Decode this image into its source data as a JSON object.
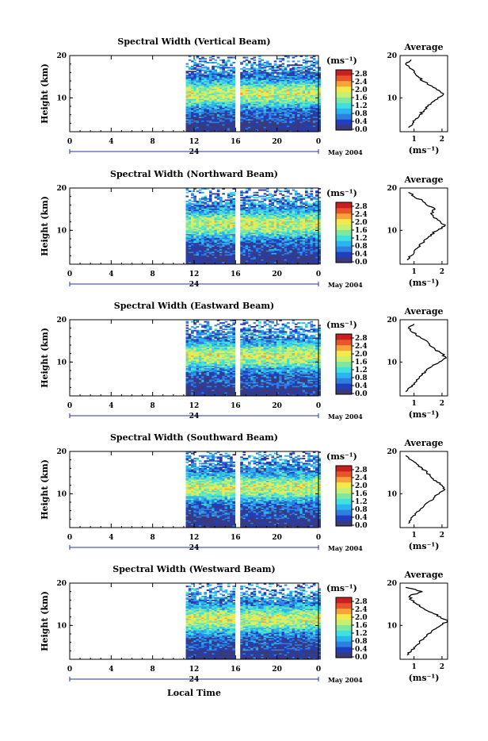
{
  "figure": {
    "xlabel": "Local Time",
    "date_label": "May 2004",
    "x_ticks": [
      "0",
      "4",
      "8",
      "12",
      "16",
      "20",
      "0"
    ],
    "day_label": "24",
    "y_ticks": [
      "20",
      "10"
    ],
    "ylabel": "Height (km)",
    "colorbar_unit": "(ms⁻¹)",
    "colorbar_ticks": [
      "2.8",
      "2.4",
      "2.0",
      "1.6",
      "1.2",
      "0.8",
      "0.4",
      "0.0"
    ],
    "avg_title": "Average",
    "avg_unit": "(ms⁻¹)",
    "avg_x_ticks": [
      "1",
      "2"
    ],
    "avg_y_ticks": [
      "20",
      "10"
    ],
    "colormap": [
      "#3a3a7a",
      "#1f3fbf",
      "#2f7fe0",
      "#2bb5f0",
      "#3fe0e0",
      "#7fe8a0",
      "#c8f070",
      "#f5e84a",
      "#f5a33a",
      "#e8552a",
      "#c9201f"
    ],
    "gap_color": "#ffffff",
    "axis_color": "#000000",
    "date_axis_color": "#2233aa"
  },
  "chart_data": [
    {
      "type": "heatmap",
      "title": "Spectral Width (Vertical Beam)",
      "xlabel": "Local Time",
      "ylabel": "Height (km)",
      "x_range_hours": [
        0,
        24
      ],
      "y_range_km": [
        2,
        20
      ],
      "data_coverage_hours": [
        11.2,
        24
      ],
      "gap_hours": [
        16.0,
        16.3
      ],
      "color_range": [
        0.0,
        2.8
      ],
      "colorbar_label": "(ms⁻¹)",
      "peak_height_km": 11,
      "average_profile": {
        "title": "Average",
        "xlabel": "(ms⁻¹)",
        "xlim": [
          0.5,
          2.2
        ],
        "heights_km": [
          3,
          4,
          5,
          6,
          7,
          8,
          9,
          10,
          11,
          12,
          13,
          14,
          15,
          16,
          17,
          18,
          19
        ],
        "values": [
          0.8,
          0.95,
          1.05,
          1.2,
          1.35,
          1.5,
          1.65,
          1.85,
          2.05,
          1.8,
          1.55,
          1.3,
          1.15,
          1.0,
          0.85,
          0.7,
          0.9
        ]
      }
    },
    {
      "type": "heatmap",
      "title": "Spectral Width (Northward Beam)",
      "xlabel": "Local Time",
      "ylabel": "Height (km)",
      "x_range_hours": [
        0,
        24
      ],
      "y_range_km": [
        2,
        20
      ],
      "data_coverage_hours": [
        11.2,
        24
      ],
      "gap_hours": [
        16.0,
        16.3
      ],
      "color_range": [
        0.0,
        2.8
      ],
      "colorbar_label": "(ms⁻¹)",
      "peak_height_km": 11.5,
      "average_profile": {
        "title": "Average",
        "xlabel": "(ms⁻¹)",
        "xlim": [
          0.5,
          2.2
        ],
        "heights_km": [
          3,
          4,
          5,
          6,
          7,
          8,
          9,
          10,
          11,
          12,
          13,
          14,
          15,
          16,
          17,
          18,
          19
        ],
        "values": [
          0.75,
          0.9,
          1.0,
          1.15,
          1.3,
          1.45,
          1.6,
          1.85,
          2.1,
          1.95,
          1.7,
          1.6,
          1.75,
          1.45,
          1.3,
          1.0,
          0.8
        ]
      }
    },
    {
      "type": "heatmap",
      "title": "Spectral Width (Eastward Beam)",
      "xlabel": "Local Time",
      "ylabel": "Height (km)",
      "x_range_hours": [
        0,
        24
      ],
      "y_range_km": [
        2,
        20
      ],
      "data_coverage_hours": [
        11.2,
        24
      ],
      "gap_hours": [
        16.0,
        16.3
      ],
      "color_range": [
        0.0,
        2.8
      ],
      "colorbar_label": "(ms⁻¹)",
      "peak_height_km": 11.5,
      "average_profile": {
        "title": "Average",
        "xlabel": "(ms⁻¹)",
        "xlim": [
          0.5,
          2.2
        ],
        "heights_km": [
          3,
          4,
          5,
          6,
          7,
          8,
          9,
          10,
          11,
          12,
          13,
          14,
          15,
          16,
          17,
          18,
          19
        ],
        "values": [
          0.7,
          0.85,
          1.0,
          1.15,
          1.3,
          1.45,
          1.65,
          1.9,
          2.15,
          2.0,
          1.75,
          1.55,
          1.45,
          1.2,
          0.95,
          0.8,
          1.0
        ]
      }
    },
    {
      "type": "heatmap",
      "title": "Spectral Width (Southward Beam)",
      "xlabel": "Local Time",
      "ylabel": "Height (km)",
      "x_range_hours": [
        0,
        24
      ],
      "y_range_km": [
        2,
        20
      ],
      "data_coverage_hours": [
        11.2,
        24
      ],
      "gap_hours": [
        16.0,
        16.3
      ],
      "color_range": [
        0.0,
        2.8
      ],
      "colorbar_label": "(ms⁻¹)",
      "peak_height_km": 11.5,
      "average_profile": {
        "title": "Average",
        "xlabel": "(ms⁻¹)",
        "xlim": [
          0.5,
          2.2
        ],
        "heights_km": [
          3,
          4,
          5,
          6,
          7,
          8,
          9,
          10,
          11,
          12,
          13,
          14,
          15,
          16,
          17,
          18,
          19
        ],
        "values": [
          0.8,
          0.9,
          1.05,
          1.2,
          1.35,
          1.5,
          1.7,
          1.9,
          2.1,
          2.0,
          1.8,
          1.6,
          1.45,
          1.3,
          1.1,
          0.9,
          0.7
        ]
      }
    },
    {
      "type": "heatmap",
      "title": "Spectral Width (Westward Beam)",
      "xlabel": "Local Time",
      "ylabel": "Height (km)",
      "x_range_hours": [
        0,
        24
      ],
      "y_range_km": [
        2,
        20
      ],
      "data_coverage_hours": [
        11.2,
        24
      ],
      "gap_hours": [
        16.0,
        16.3
      ],
      "color_range": [
        0.0,
        2.8
      ],
      "colorbar_label": "(ms⁻¹)",
      "peak_height_km": 11.5,
      "average_profile": {
        "title": "Average",
        "xlabel": "(ms⁻¹)",
        "xlim": [
          0.5,
          2.2
        ],
        "heights_km": [
          3,
          4,
          5,
          6,
          7,
          8,
          9,
          10,
          11,
          12,
          13,
          14,
          15,
          16,
          17,
          18,
          19
        ],
        "values": [
          0.75,
          0.9,
          1.05,
          1.2,
          1.35,
          1.5,
          1.7,
          1.95,
          2.2,
          1.95,
          1.65,
          1.35,
          1.1,
          0.9,
          0.85,
          1.3,
          0.7
        ]
      }
    }
  ]
}
